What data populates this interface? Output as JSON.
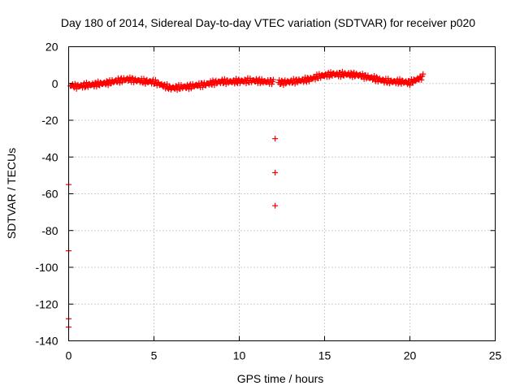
{
  "chart_data": {
    "type": "scatter",
    "title": "Day 180 of 2014, Sidereal Day-to-day VTEC variation (SDTVAR) for receiver p020",
    "xlabel": "GPS time / hours",
    "ylabel": "SDTVAR / TECUs",
    "xlim": [
      0,
      25
    ],
    "ylim": [
      -140,
      20
    ],
    "xticks": [
      0,
      5,
      10,
      15,
      20,
      25
    ],
    "yticks": [
      20,
      0,
      -20,
      -40,
      -60,
      -80,
      -100,
      -120,
      -140
    ],
    "grid": true,
    "marker": "+",
    "colors": {
      "series": "#ff0000",
      "grid": "#a0a0a0",
      "axes": "#000000"
    },
    "series": [
      {
        "name": "SDTVAR",
        "trend": [
          [
            0.1,
            -1
          ],
          [
            0.5,
            -1.5
          ],
          [
            1.0,
            -1
          ],
          [
            1.5,
            -0.5
          ],
          [
            2.0,
            0
          ],
          [
            2.5,
            0.8
          ],
          [
            3.0,
            1.8
          ],
          [
            3.5,
            2.3
          ],
          [
            4.0,
            1.6
          ],
          [
            4.5,
            1.2
          ],
          [
            5.0,
            0.8
          ],
          [
            5.5,
            -1
          ],
          [
            6.0,
            -2.5
          ],
          [
            6.5,
            -2
          ],
          [
            7.0,
            -1.8
          ],
          [
            7.5,
            -1
          ],
          [
            8.0,
            -0.5
          ],
          [
            8.5,
            0.5
          ],
          [
            9.0,
            1
          ],
          [
            9.5,
            1
          ],
          [
            10.0,
            1.2
          ],
          [
            10.5,
            1.5
          ],
          [
            11.0,
            1.5
          ],
          [
            11.5,
            1
          ],
          [
            12.0,
            1
          ],
          [
            12.2,
            null
          ],
          [
            12.3,
            0.5
          ],
          [
            12.5,
            0.5
          ],
          [
            13.0,
            1
          ],
          [
            13.5,
            1.5
          ],
          [
            14.0,
            2
          ],
          [
            14.5,
            3.5
          ],
          [
            15.0,
            4.5
          ],
          [
            15.5,
            5
          ],
          [
            16.0,
            5
          ],
          [
            16.5,
            5
          ],
          [
            17.0,
            4.5
          ],
          [
            17.5,
            3.5
          ],
          [
            18.0,
            2.5
          ],
          [
            18.5,
            1.5
          ],
          [
            19.0,
            1
          ],
          [
            19.5,
            1
          ],
          [
            20.0,
            0.5
          ],
          [
            20.5,
            2.5
          ],
          [
            20.8,
            4
          ]
        ],
        "outliers": [
          [
            12.1,
            -30
          ],
          [
            12.1,
            -48.5
          ],
          [
            12.1,
            -66.5
          ],
          [
            0.0,
            -55
          ],
          [
            0.0,
            -91
          ],
          [
            0.0,
            -128
          ],
          [
            0.0,
            -132.5
          ]
        ]
      }
    ]
  }
}
